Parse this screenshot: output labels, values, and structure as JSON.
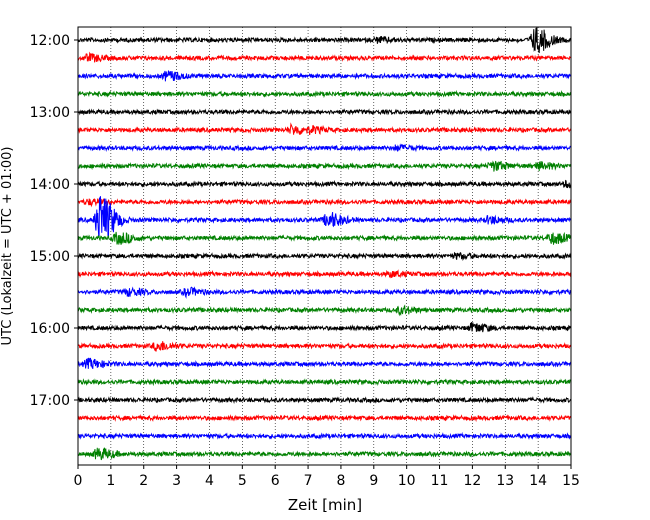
{
  "chart_data": {
    "type": "line",
    "title": "",
    "xlabel": "Zeit  [min]",
    "ylabel": "UTC (Lokalzeit = UTC + 01:00)",
    "xlim": [
      0,
      15
    ],
    "x_ticks": [
      "0",
      "1",
      "2",
      "3",
      "4",
      "5",
      "6",
      "7",
      "8",
      "9",
      "10",
      "11",
      "12",
      "13",
      "14",
      "15"
    ],
    "y_ticks": [
      "12:00",
      "13:00",
      "14:00",
      "15:00",
      "16:00",
      "17:00"
    ],
    "grid": "vertical dotted lines at each minute",
    "legend": "none",
    "trace_colors": [
      "#000000",
      "#ff0000",
      "#0000ff",
      "#008000"
    ],
    "traces": [
      {
        "start": "12:00",
        "color": "#000000",
        "events": [
          {
            "t": 13.9,
            "amp": 12
          },
          {
            "t": 9.1,
            "amp": 2
          }
        ]
      },
      {
        "start": "12:15",
        "color": "#ff0000",
        "events": [
          {
            "t": 0.3,
            "amp": 3
          }
        ]
      },
      {
        "start": "12:30",
        "color": "#0000ff",
        "events": [
          {
            "t": 2.7,
            "amp": 4
          }
        ]
      },
      {
        "start": "12:45",
        "color": "#008000",
        "events": []
      },
      {
        "start": "13:00",
        "color": "#000000",
        "events": []
      },
      {
        "start": "13:15",
        "color": "#ff0000",
        "events": [
          {
            "t": 6.5,
            "amp": 4
          },
          {
            "t": 7.1,
            "amp": 2
          }
        ]
      },
      {
        "start": "13:30",
        "color": "#0000ff",
        "events": [
          {
            "t": 9.7,
            "amp": 2
          }
        ]
      },
      {
        "start": "13:45",
        "color": "#008000",
        "events": [
          {
            "t": 12.6,
            "amp": 4
          },
          {
            "t": 14.0,
            "amp": 3
          }
        ]
      },
      {
        "start": "14:00",
        "color": "#000000",
        "events": [
          {
            "t": 14.9,
            "amp": 3
          }
        ]
      },
      {
        "start": "14:15",
        "color": "#ff0000",
        "events": [
          {
            "t": 0.3,
            "amp": 2
          }
        ]
      },
      {
        "start": "14:30",
        "color": "#0000ff",
        "events": [
          {
            "t": 0.65,
            "amp": 24
          },
          {
            "t": 7.6,
            "amp": 7
          },
          {
            "t": 12.5,
            "amp": 3
          }
        ]
      },
      {
        "start": "14:45",
        "color": "#008000",
        "events": [
          {
            "t": 1.2,
            "amp": 5
          },
          {
            "t": 14.4,
            "amp": 5
          }
        ]
      },
      {
        "start": "15:00",
        "color": "#000000",
        "events": [
          {
            "t": 11.5,
            "amp": 2
          }
        ]
      },
      {
        "start": "15:15",
        "color": "#ff0000",
        "events": [
          {
            "t": 9.5,
            "amp": 2
          }
        ]
      },
      {
        "start": "15:30",
        "color": "#0000ff",
        "events": [
          {
            "t": 1.5,
            "amp": 3
          },
          {
            "t": 3.3,
            "amp": 3
          }
        ]
      },
      {
        "start": "15:45",
        "color": "#008000",
        "events": [
          {
            "t": 9.8,
            "amp": 3
          }
        ]
      },
      {
        "start": "16:00",
        "color": "#000000",
        "events": [
          {
            "t": 12.0,
            "amp": 4
          }
        ]
      },
      {
        "start": "16:15",
        "color": "#ff0000",
        "events": [
          {
            "t": 2.4,
            "amp": 4
          }
        ]
      },
      {
        "start": "16:30",
        "color": "#0000ff",
        "events": [
          {
            "t": 0.3,
            "amp": 4
          }
        ]
      },
      {
        "start": "16:45",
        "color": "#008000",
        "events": []
      },
      {
        "start": "17:00",
        "color": "#000000",
        "events": []
      },
      {
        "start": "17:15",
        "color": "#ff0000",
        "events": []
      },
      {
        "start": "17:30",
        "color": "#0000ff",
        "events": []
      },
      {
        "start": "17:45",
        "color": "#008000",
        "events": [
          {
            "t": 0.6,
            "amp": 5
          }
        ]
      }
    ]
  }
}
